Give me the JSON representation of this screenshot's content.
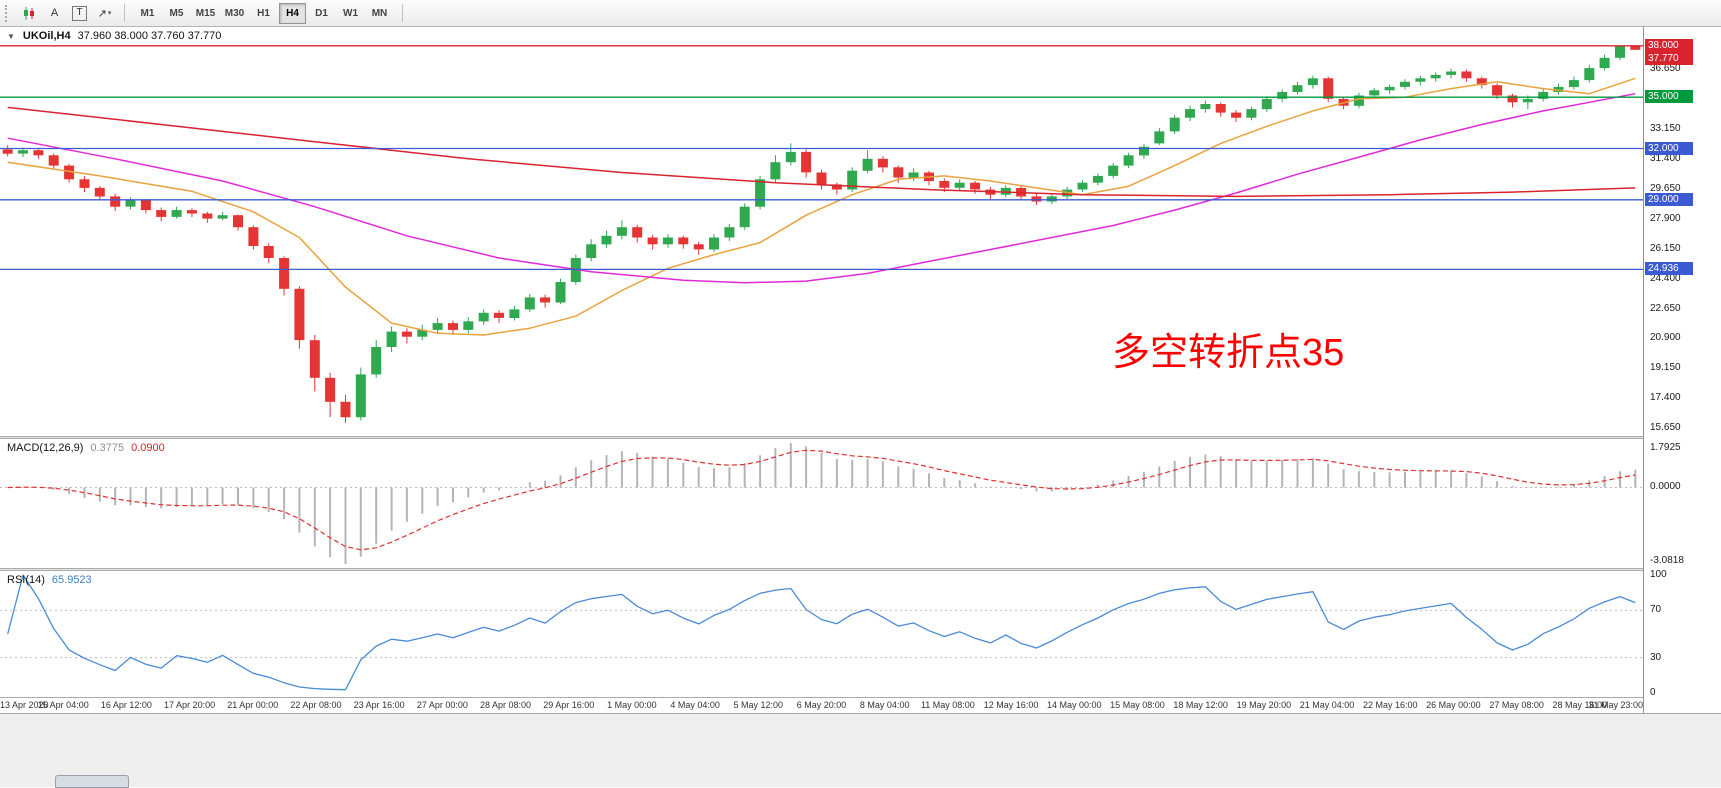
{
  "toolbar": {
    "buttons_left": [
      {
        "name": "chart-mode",
        "label": ""
      },
      {
        "name": "cursor-a",
        "label": "A"
      },
      {
        "name": "text-tool",
        "label": "T"
      },
      {
        "name": "arrow-tools",
        "label": "↗",
        "caret": "▾"
      }
    ],
    "timeframes": [
      {
        "label": "M1",
        "active": false
      },
      {
        "label": "M5",
        "active": false
      },
      {
        "label": "M15",
        "active": false
      },
      {
        "label": "M30",
        "active": false
      },
      {
        "label": "H1",
        "active": false
      },
      {
        "label": "H4",
        "active": true
      },
      {
        "label": "D1",
        "active": false
      },
      {
        "label": "W1",
        "active": false
      },
      {
        "label": "MN",
        "active": false
      }
    ]
  },
  "chart": {
    "header": {
      "collapse_glyph": "▼",
      "symbol_period": "UKOil,H4",
      "ohlc": "37.960 38.000 37.760 37.770"
    },
    "annotation": {
      "text": "多空转折点35",
      "color": "#FF0000"
    },
    "price_scale_ticks": [
      "36.650",
      "33.150",
      "31.400",
      "29.650",
      "27.900",
      "26.150",
      "24.400",
      "22.650",
      "20.900",
      "19.150",
      "17.400",
      "15.650"
    ],
    "line_labels": [
      {
        "value": "38.000",
        "color": "#d9232e"
      },
      {
        "value": "37.770",
        "color": "#d9232e"
      },
      {
        "value": "35.000",
        "color": "#009a3e"
      },
      {
        "value": "32.000",
        "color": "#3c5bd2"
      },
      {
        "value": "29.000",
        "color": "#3c5bd2"
      },
      {
        "value": "24.936",
        "color": "#3c5bd2"
      }
    ]
  },
  "indicators": {
    "macd": {
      "label": "MACD(12,26,9)",
      "value_main": "0.3775",
      "value_signal": "0.0900",
      "scale_top": "1.7925",
      "scale_zero": "0.0000",
      "scale_bottom": "-3.0818"
    },
    "rsi": {
      "label": "RSI(14)",
      "value": "65.9523",
      "scale": [
        "100",
        "70",
        "30",
        "0"
      ]
    }
  },
  "chart_data": {
    "type": "candlestick",
    "symbol": "UKOil",
    "timeframe": "H4",
    "title": "UKOil,H4",
    "ohlc_current": [
      37.96,
      38.0,
      37.76,
      37.77
    ],
    "price_axis": {
      "max": 39.1,
      "min": 15.2,
      "tick_step": 1.75
    },
    "x_labels": [
      "13 Apr 2020",
      "15 Apr 04:00",
      "16 Apr 12:00",
      "17 Apr 20:00",
      "21 Apr 00:00",
      "22 Apr 08:00",
      "23 Apr 16:00",
      "27 Apr 00:00",
      "28 Apr 08:00",
      "29 Apr 16:00",
      "1 May 00:00",
      "4 May 04:00",
      "5 May 12:00",
      "6 May 20:00",
      "8 May 04:00",
      "11 May 08:00",
      "12 May 16:00",
      "14 May 00:00",
      "15 May 08:00",
      "18 May 12:00",
      "19 May 20:00",
      "21 May 04:00",
      "22 May 16:00",
      "26 May 00:00",
      "27 May 08:00",
      "28 May 16:00",
      "31 May 23:00"
    ],
    "candles": [
      [
        31.95,
        32.2,
        31.55,
        31.7
      ],
      [
        31.7,
        32.05,
        31.5,
        31.9
      ],
      [
        31.9,
        32.0,
        31.4,
        31.6
      ],
      [
        31.6,
        31.7,
        30.85,
        31.0
      ],
      [
        31.0,
        31.1,
        30.0,
        30.2
      ],
      [
        30.2,
        30.4,
        29.45,
        29.7
      ],
      [
        29.7,
        29.8,
        29.0,
        29.2
      ],
      [
        29.2,
        29.35,
        28.35,
        28.6
      ],
      [
        28.6,
        29.15,
        28.45,
        29.0
      ],
      [
        29.0,
        29.05,
        28.2,
        28.4
      ],
      [
        28.4,
        28.55,
        27.75,
        28.0
      ],
      [
        28.0,
        28.6,
        27.9,
        28.4
      ],
      [
        28.4,
        28.5,
        28.0,
        28.2
      ],
      [
        28.2,
        28.3,
        27.65,
        27.9
      ],
      [
        27.9,
        28.3,
        27.8,
        28.1
      ],
      [
        28.1,
        28.15,
        27.2,
        27.4
      ],
      [
        27.4,
        27.5,
        26.1,
        26.3
      ],
      [
        26.3,
        26.45,
        25.3,
        25.6
      ],
      [
        25.6,
        25.7,
        23.4,
        23.8
      ],
      [
        23.8,
        23.95,
        20.3,
        20.8
      ],
      [
        20.8,
        21.1,
        17.8,
        18.6
      ],
      [
        18.6,
        18.9,
        16.3,
        17.2
      ],
      [
        17.2,
        17.6,
        15.98,
        16.3
      ],
      [
        16.3,
        19.2,
        16.1,
        18.8
      ],
      [
        18.8,
        20.8,
        18.6,
        20.4
      ],
      [
        20.4,
        21.6,
        20.1,
        21.3
      ],
      [
        21.3,
        21.5,
        20.6,
        21.0
      ],
      [
        21.0,
        21.7,
        20.8,
        21.4
      ],
      [
        21.4,
        22.1,
        21.2,
        21.8
      ],
      [
        21.8,
        21.95,
        21.1,
        21.4
      ],
      [
        21.4,
        22.15,
        21.2,
        21.9
      ],
      [
        21.9,
        22.6,
        21.7,
        22.4
      ],
      [
        22.4,
        22.55,
        21.8,
        22.1
      ],
      [
        22.1,
        22.8,
        21.95,
        22.6
      ],
      [
        22.6,
        23.5,
        22.45,
        23.3
      ],
      [
        23.3,
        23.45,
        22.7,
        23.0
      ],
      [
        23.0,
        24.4,
        22.9,
        24.2
      ],
      [
        24.2,
        25.8,
        24.05,
        25.6
      ],
      [
        25.6,
        26.7,
        25.4,
        26.4
      ],
      [
        26.4,
        27.2,
        26.2,
        26.9
      ],
      [
        26.9,
        27.8,
        26.7,
        27.4
      ],
      [
        27.4,
        27.55,
        26.5,
        26.8
      ],
      [
        26.8,
        26.95,
        26.1,
        26.4
      ],
      [
        26.4,
        27.0,
        26.2,
        26.8
      ],
      [
        26.8,
        26.9,
        26.15,
        26.4
      ],
      [
        26.4,
        26.55,
        25.8,
        26.1
      ],
      [
        26.1,
        27.0,
        25.95,
        26.8
      ],
      [
        26.8,
        27.6,
        26.6,
        27.4
      ],
      [
        27.4,
        28.8,
        27.25,
        28.6
      ],
      [
        28.6,
        30.4,
        28.45,
        30.2
      ],
      [
        30.2,
        31.6,
        30.0,
        31.2
      ],
      [
        31.2,
        32.3,
        31.0,
        31.8
      ],
      [
        31.8,
        31.95,
        30.3,
        30.6
      ],
      [
        30.6,
        30.75,
        29.6,
        29.9
      ],
      [
        29.9,
        30.0,
        29.3,
        29.6
      ],
      [
        29.6,
        30.9,
        29.45,
        30.7
      ],
      [
        30.7,
        31.9,
        30.55,
        31.4
      ],
      [
        31.4,
        31.55,
        30.6,
        30.9
      ],
      [
        30.9,
        31.0,
        30.0,
        30.3
      ],
      [
        30.3,
        30.85,
        30.1,
        30.6
      ],
      [
        30.6,
        30.7,
        29.85,
        30.1
      ],
      [
        30.1,
        30.25,
        29.45,
        29.7
      ],
      [
        29.7,
        30.2,
        29.55,
        30.0
      ],
      [
        30.0,
        30.1,
        29.35,
        29.6
      ],
      [
        29.6,
        29.75,
        29.05,
        29.3
      ],
      [
        29.3,
        29.85,
        29.15,
        29.7
      ],
      [
        29.7,
        29.8,
        29.0,
        29.2
      ],
      [
        29.2,
        29.35,
        28.7,
        28.9
      ],
      [
        28.9,
        29.4,
        28.75,
        29.2
      ],
      [
        29.2,
        29.75,
        29.05,
        29.6
      ],
      [
        29.6,
        30.15,
        29.45,
        30.0
      ],
      [
        30.0,
        30.55,
        29.85,
        30.4
      ],
      [
        30.4,
        31.15,
        30.25,
        31.0
      ],
      [
        31.0,
        31.75,
        30.85,
        31.6
      ],
      [
        31.6,
        32.25,
        31.4,
        32.1
      ],
      [
        32.3,
        33.2,
        32.2,
        33.0
      ],
      [
        33.0,
        33.95,
        32.85,
        33.8
      ],
      [
        33.8,
        34.5,
        33.6,
        34.3
      ],
      [
        34.3,
        34.8,
        34.1,
        34.6
      ],
      [
        34.6,
        34.7,
        33.85,
        34.1
      ],
      [
        34.1,
        34.25,
        33.55,
        33.8
      ],
      [
        33.8,
        34.45,
        33.65,
        34.3
      ],
      [
        34.3,
        35.05,
        34.15,
        34.9
      ],
      [
        34.9,
        35.45,
        34.7,
        35.3
      ],
      [
        35.3,
        35.9,
        35.15,
        35.7
      ],
      [
        35.7,
        36.25,
        35.5,
        36.1
      ],
      [
        36.1,
        36.2,
        34.7,
        34.9
      ],
      [
        34.9,
        35.0,
        34.3,
        34.5
      ],
      [
        34.5,
        35.25,
        34.35,
        35.1
      ],
      [
        35.1,
        35.55,
        34.9,
        35.4
      ],
      [
        35.4,
        35.75,
        35.2,
        35.6
      ],
      [
        35.6,
        36.05,
        35.45,
        35.9
      ],
      [
        35.9,
        36.25,
        35.7,
        36.1
      ],
      [
        36.1,
        36.45,
        35.9,
        36.3
      ],
      [
        36.3,
        36.65,
        36.1,
        36.5
      ],
      [
        36.5,
        36.6,
        35.9,
        36.1
      ],
      [
        36.1,
        36.2,
        35.5,
        35.7
      ],
      [
        35.7,
        35.8,
        34.9,
        35.1
      ],
      [
        35.1,
        35.2,
        34.4,
        34.7
      ],
      [
        34.7,
        35.1,
        34.3,
        34.9
      ],
      [
        34.9,
        35.5,
        34.75,
        35.3
      ],
      [
        35.3,
        35.8,
        35.15,
        35.6
      ],
      [
        35.6,
        36.2,
        35.45,
        36.0
      ],
      [
        36.0,
        36.9,
        35.85,
        36.7
      ],
      [
        36.7,
        37.5,
        36.55,
        37.3
      ],
      [
        37.3,
        38.0,
        37.15,
        37.96
      ],
      [
        37.96,
        38.0,
        37.76,
        37.77
      ]
    ],
    "horizontal_lines": [
      {
        "price": 38.0,
        "color": "#d9232e"
      },
      {
        "price": 35.0,
        "color": "#009a3e"
      },
      {
        "price": 32.0,
        "color": "#3c5bd2"
      },
      {
        "price": 29.0,
        "color": "#3c5bd2"
      },
      {
        "price": 24.936,
        "color": "#3c5bd2"
      }
    ],
    "moving_averages": [
      {
        "name": "ma-fast-orange",
        "color": "#e8a33d",
        "points": [
          [
            0,
            31.2
          ],
          [
            6,
            30.4
          ],
          [
            12,
            29.5
          ],
          [
            16,
            28.3
          ],
          [
            19,
            26.8
          ],
          [
            22,
            23.9
          ],
          [
            25,
            21.8
          ],
          [
            28,
            21.2
          ],
          [
            31,
            21.1
          ],
          [
            34,
            21.5
          ],
          [
            37,
            22.2
          ],
          [
            40,
            23.7
          ],
          [
            43,
            25.0
          ],
          [
            46,
            25.8
          ],
          [
            49,
            26.5
          ],
          [
            52,
            28.1
          ],
          [
            55,
            29.3
          ],
          [
            58,
            30.2
          ],
          [
            61,
            30.4
          ],
          [
            64,
            30.1
          ],
          [
            67,
            29.7
          ],
          [
            70,
            29.3
          ],
          [
            73,
            29.8
          ],
          [
            76,
            31.0
          ],
          [
            79,
            32.3
          ],
          [
            82,
            33.3
          ],
          [
            85,
            34.2
          ],
          [
            88,
            34.9
          ],
          [
            91,
            35.0
          ],
          [
            94,
            35.5
          ],
          [
            97,
            35.9
          ],
          [
            100,
            35.5
          ],
          [
            103,
            35.2
          ],
          [
            106,
            36.1
          ]
        ]
      },
      {
        "name": "ma-mid-magenta",
        "color": "#e02ad8",
        "points": [
          [
            0,
            32.6
          ],
          [
            7,
            31.4
          ],
          [
            14,
            30.1
          ],
          [
            20,
            28.6
          ],
          [
            26,
            26.9
          ],
          [
            32,
            25.6
          ],
          [
            38,
            24.8
          ],
          [
            44,
            24.3
          ],
          [
            48,
            24.15
          ],
          [
            52,
            24.25
          ],
          [
            56,
            24.7
          ],
          [
            60,
            25.4
          ],
          [
            64,
            26.1
          ],
          [
            68,
            26.8
          ],
          [
            72,
            27.5
          ],
          [
            76,
            28.4
          ],
          [
            80,
            29.4
          ],
          [
            84,
            30.5
          ],
          [
            88,
            31.5
          ],
          [
            92,
            32.5
          ],
          [
            96,
            33.4
          ],
          [
            100,
            34.2
          ],
          [
            103,
            34.7
          ],
          [
            106,
            35.2
          ]
        ]
      },
      {
        "name": "ma-slow-red",
        "color": "#d9232e",
        "points": [
          [
            0,
            34.4
          ],
          [
            10,
            33.4
          ],
          [
            20,
            32.4
          ],
          [
            30,
            31.4
          ],
          [
            40,
            30.6
          ],
          [
            50,
            30.0
          ],
          [
            60,
            29.6
          ],
          [
            70,
            29.3
          ],
          [
            80,
            29.2
          ],
          [
            90,
            29.3
          ],
          [
            98,
            29.45
          ],
          [
            106,
            29.7
          ]
        ]
      }
    ],
    "indicators": {
      "macd": {
        "params": [
          12,
          26,
          9
        ],
        "display_values": [
          0.3775,
          0.09
        ],
        "range": [
          -3.0818,
          1.7925
        ],
        "compute_params": [
          6,
          13,
          5
        ],
        "histogram_color": "#b4b4b4",
        "signal_color": "#e03030"
      },
      "rsi": {
        "period": 14,
        "value": 65.9523,
        "levels": [
          30,
          70
        ],
        "range": [
          0,
          100
        ],
        "compute_period": 7,
        "color": "#4a8bd4"
      }
    }
  }
}
